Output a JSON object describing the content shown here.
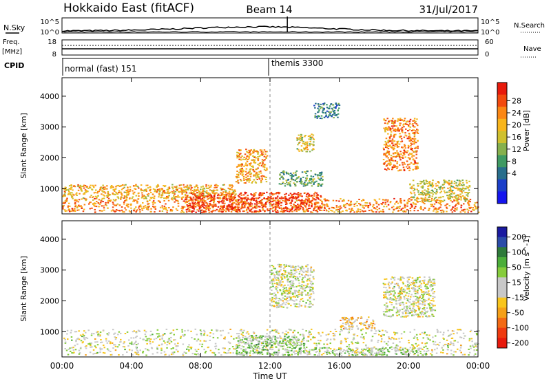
{
  "header": {
    "station": "Hokkaido East (fitACF)",
    "beam": "Beam 14",
    "date": "31/Jul/2017"
  },
  "top_panels": {
    "nsky_label": "N.Sky",
    "nsearch_label": "N.Search",
    "nsky_ticks": [
      "10^5",
      "10^0"
    ],
    "nsearch_ticks": [
      "10^5",
      "10^0"
    ],
    "freq_label_1": "Freq.",
    "freq_label_2": "[MHz]",
    "freq_ticks": [
      "18",
      "8"
    ],
    "nave_label": "Nave",
    "nave_ticks": [
      "60",
      "0"
    ],
    "cpid_label": "CPID",
    "cpid_segments": [
      {
        "label": "normal (fast) 151",
        "start_hour": 0
      },
      {
        "label": "themis 3300",
        "start_hour": 12
      }
    ]
  },
  "chart_data": [
    {
      "type": "heatmap",
      "panel": "power",
      "ylabel": "Slant Range [km]",
      "xlabel": "",
      "x_range_hours": [
        0,
        24
      ],
      "ylim": [
        180,
        4600
      ],
      "y_ticks": [
        1000,
        2000,
        3000,
        4000
      ],
      "colorbar": {
        "title": "Power [dB]",
        "ticks": [
          "28",
          "24",
          "20",
          "16",
          "12",
          "8",
          "4"
        ],
        "colors": [
          "#e81a0c",
          "#f34a0e",
          "#fb8714",
          "#f8b51c",
          "#cfc02e",
          "#86b04d",
          "#3f9a63",
          "#286e8c",
          "#1b3fc9",
          "#1515ee"
        ]
      },
      "regions": [
        {
          "x": [
            0,
            24
          ],
          "y": [
            250,
            700
          ],
          "value": 24
        },
        {
          "x": [
            0,
            10
          ],
          "y": [
            700,
            1150
          ],
          "value": 21
        },
        {
          "x": [
            7,
            15
          ],
          "y": [
            250,
            900
          ],
          "value": 28
        },
        {
          "x": [
            10,
            11.8
          ],
          "y": [
            1200,
            2300
          ],
          "value": 22
        },
        {
          "x": [
            12.5,
            15
          ],
          "y": [
            1100,
            1600
          ],
          "value": 12
        },
        {
          "x": [
            18.5,
            20.5
          ],
          "y": [
            1600,
            3300
          ],
          "value": 24
        },
        {
          "x": [
            20,
            23.5
          ],
          "y": [
            600,
            1300
          ],
          "value": 18
        },
        {
          "x": [
            13.5,
            14.5
          ],
          "y": [
            2200,
            2800
          ],
          "value": 18
        },
        {
          "x": [
            14.5,
            16
          ],
          "y": [
            3300,
            3800
          ],
          "value": 10
        }
      ]
    },
    {
      "type": "heatmap",
      "panel": "velocity",
      "ylabel": "Slant Range [km]",
      "xlabel": "Time UT",
      "x_range_hours": [
        0,
        24
      ],
      "ylim": [
        180,
        4600
      ],
      "y_ticks": [
        1000,
        2000,
        3000,
        4000
      ],
      "colorbar": {
        "title": "Velocity [m s^-1]",
        "ticks": [
          "200",
          "100",
          "50",
          "15",
          "-15",
          "-50",
          "-100",
          "-200"
        ],
        "colors": [
          "#1a1aa0",
          "#2b4ca8",
          "#2e7a3a",
          "#4cae3a",
          "#86cc3c",
          "#c8c8c8",
          "#c8c8c8",
          "#f8c51c",
          "#f5a018",
          "#f36a14",
          "#ef3a10",
          "#e81a0c"
        ]
      },
      "regions": [
        {
          "x": [
            0,
            24
          ],
          "y": [
            250,
            1100
          ],
          "value": 0
        },
        {
          "x": [
            10,
            14
          ],
          "y": [
            250,
            900
          ],
          "value": 45
        },
        {
          "x": [
            14,
            21
          ],
          "y": [
            250,
            500
          ],
          "value": 30
        },
        {
          "x": [
            18.5,
            21.5
          ],
          "y": [
            1500,
            2800
          ],
          "value": 0
        },
        {
          "x": [
            16,
            18
          ],
          "y": [
            1100,
            1500
          ],
          "value": -45
        },
        {
          "x": [
            12,
            14.5
          ],
          "y": [
            1800,
            3200
          ],
          "value": 0
        }
      ]
    }
  ],
  "time_axis": {
    "ticks": [
      "00:00",
      "04:00",
      "08:00",
      "12:00",
      "16:00",
      "20:00",
      "00:00"
    ],
    "label": "Time UT"
  }
}
